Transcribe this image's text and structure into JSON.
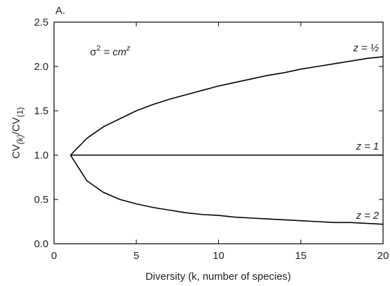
{
  "chart_data": {
    "type": "line",
    "title": "A.",
    "annotation_parts": [
      "σ",
      "2",
      " = cm",
      "z"
    ],
    "x_label": "Diversity (k, number of species)",
    "y_label_parts": [
      "CV",
      "(k)",
      "/CV",
      "(1)"
    ],
    "x": [
      1,
      2,
      3,
      4,
      5,
      6,
      7,
      8,
      9,
      10,
      11,
      12,
      13,
      14,
      15,
      16,
      17,
      18,
      19,
      20
    ],
    "series": [
      {
        "name": "z = ½",
        "color": "#000000",
        "values": [
          1,
          1.19,
          1.32,
          1.41,
          1.5,
          1.57,
          1.63,
          1.68,
          1.73,
          1.78,
          1.82,
          1.86,
          1.9,
          1.93,
          1.97,
          2.0,
          2.03,
          2.06,
          2.09,
          2.11
        ]
      },
      {
        "name": "z = 1",
        "color": "#000000",
        "values": [
          1,
          1,
          1,
          1,
          1,
          1,
          1,
          1,
          1,
          1,
          1,
          1,
          1,
          1,
          1,
          1,
          1,
          1,
          1,
          1
        ]
      },
      {
        "name": "z = 2",
        "color": "#000000",
        "values": [
          1,
          0.71,
          0.58,
          0.5,
          0.45,
          0.41,
          0.38,
          0.35,
          0.33,
          0.32,
          0.3,
          0.29,
          0.28,
          0.27,
          0.26,
          0.25,
          0.24,
          0.24,
          0.23,
          0.22
        ]
      }
    ],
    "xlim": [
      0,
      20
    ],
    "xticks": [
      0,
      5,
      10,
      15,
      20
    ],
    "ylim": [
      0,
      2.5
    ],
    "yticks": [
      {
        "value": 0,
        "label": "0.0"
      },
      {
        "value": 0.5,
        "label": "0.5"
      },
      {
        "value": 1,
        "label": "1.0"
      },
      {
        "value": 1.5,
        "label": "1.5"
      },
      {
        "value": 2,
        "label": "2.0"
      },
      {
        "value": 2.5,
        "label": "2.5"
      }
    ],
    "grid": false
  }
}
